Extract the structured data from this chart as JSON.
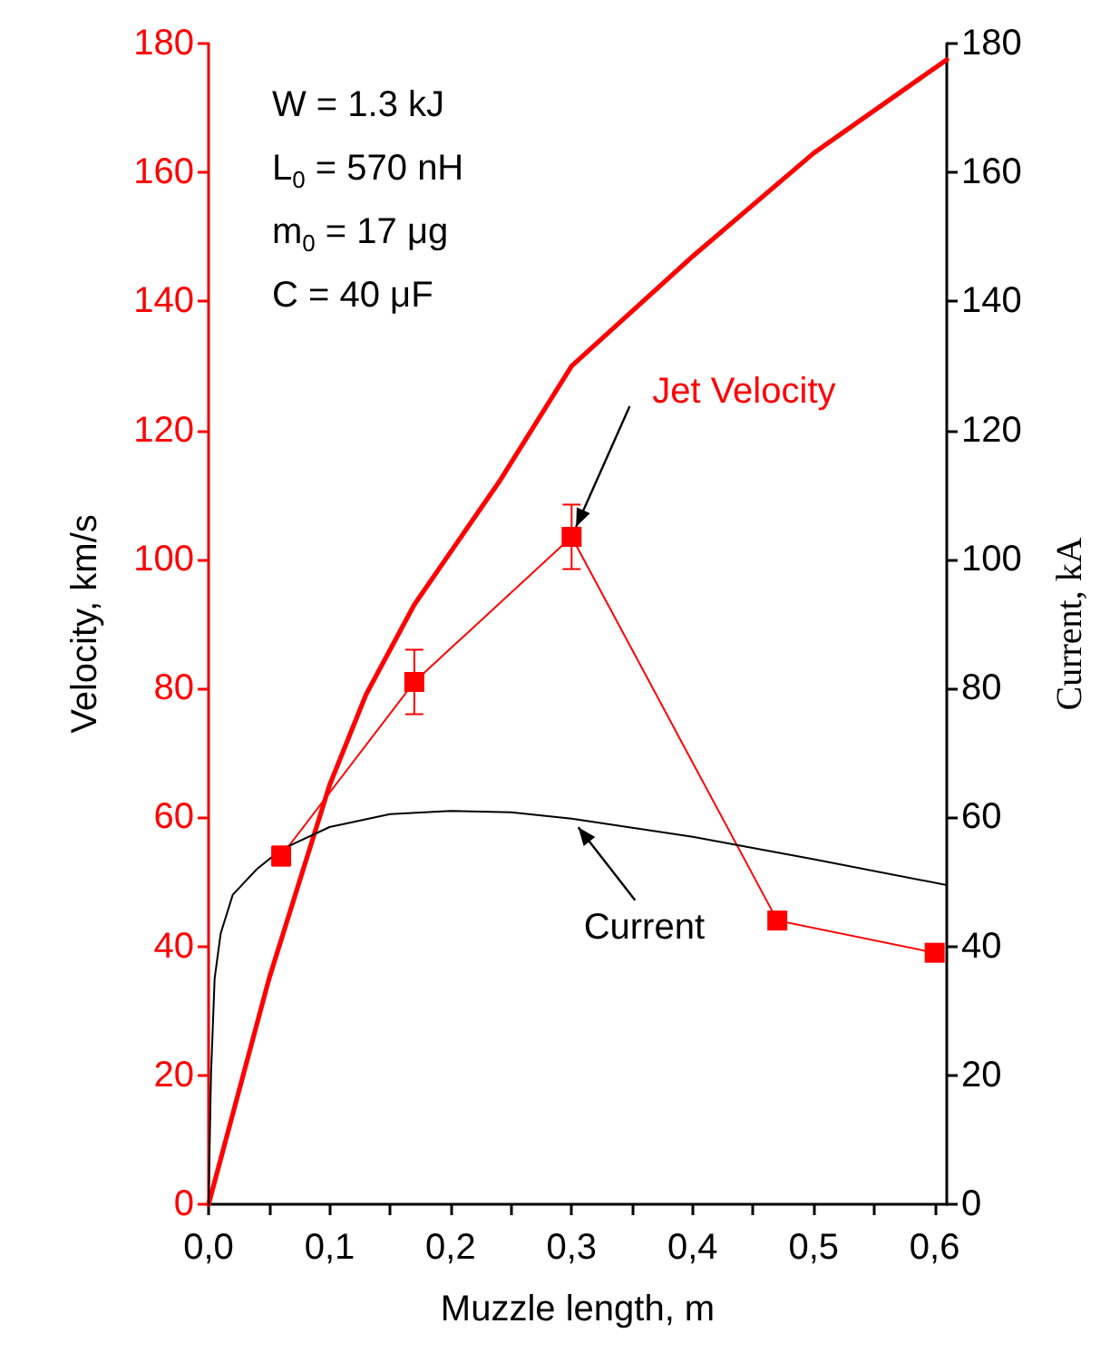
{
  "chart_data": {
    "type": "line",
    "xlabel": "Muzzle length, m",
    "ylabel": "Velocity, km/s",
    "y2label": "Current, kA",
    "xlim": [
      0,
      0.61
    ],
    "ylim": [
      0,
      180
    ],
    "y2lim": [
      0,
      180
    ],
    "xticks": [
      {
        "value": 0,
        "label": "0,0"
      },
      {
        "value": 0.05,
        "label": null
      },
      {
        "value": 0.1,
        "label": "0,1"
      },
      {
        "value": 0.15,
        "label": null
      },
      {
        "value": 0.2,
        "label": "0,2"
      },
      {
        "value": 0.25,
        "label": null
      },
      {
        "value": 0.3,
        "label": "0,3"
      },
      {
        "value": 0.35,
        "label": null
      },
      {
        "value": 0.4,
        "label": "0,4"
      },
      {
        "value": 0.45,
        "label": null
      },
      {
        "value": 0.5,
        "label": "0,5"
      },
      {
        "value": 0.55,
        "label": null
      },
      {
        "value": 0.6,
        "label": "0,6"
      }
    ],
    "yticks": [
      0,
      20,
      40,
      60,
      80,
      100,
      120,
      140,
      160,
      180
    ],
    "y2ticks": [
      0,
      20,
      40,
      60,
      80,
      100,
      120,
      140,
      160,
      180
    ],
    "grid": false,
    "series": [
      {
        "color": "#ff0000",
        "marker": "none",
        "x": [
          0,
          0.02,
          0.05,
          0.1,
          0.13,
          0.17,
          0.24,
          0.3,
          0.4,
          0.5,
          0.61
        ],
        "values": [
          0,
          14,
          35,
          65,
          79,
          93,
          112,
          130,
          147,
          163,
          177.5
        ]
      },
      {
        "color": "#ff0000",
        "marker": "square",
        "x": [
          0.06,
          0.17,
          0.3,
          0.47,
          0.6
        ],
        "values": [
          54,
          81,
          103.5,
          44,
          39
        ],
        "errors": [
          1.5,
          5,
          5,
          1,
          null
        ]
      },
      {
        "color": "#000000",
        "marker": "none",
        "axis": "y2",
        "x": [
          0,
          0.002,
          0.005,
          0.01,
          0.02,
          0.04,
          0.06,
          0.1,
          0.15,
          0.2,
          0.25,
          0.3,
          0.4,
          0.5,
          0.61
        ],
        "values": [
          0,
          20,
          35,
          42,
          48,
          52,
          55,
          58.5,
          60.5,
          61,
          60.8,
          59.8,
          57,
          53.5,
          49.5
        ]
      }
    ],
    "annotations": [
      "W = 1.3 kJ",
      "L$_{0}$ = 570 nH",
      "m$_{0}$ = 17 μg",
      "C = 40 μF",
      {
        "text": "Jet Velocity",
        "x": 0.3,
        "y": 103.5
      },
      {
        "text": "Current",
        "x": 0.3,
        "y": 59.8
      }
    ]
  }
}
